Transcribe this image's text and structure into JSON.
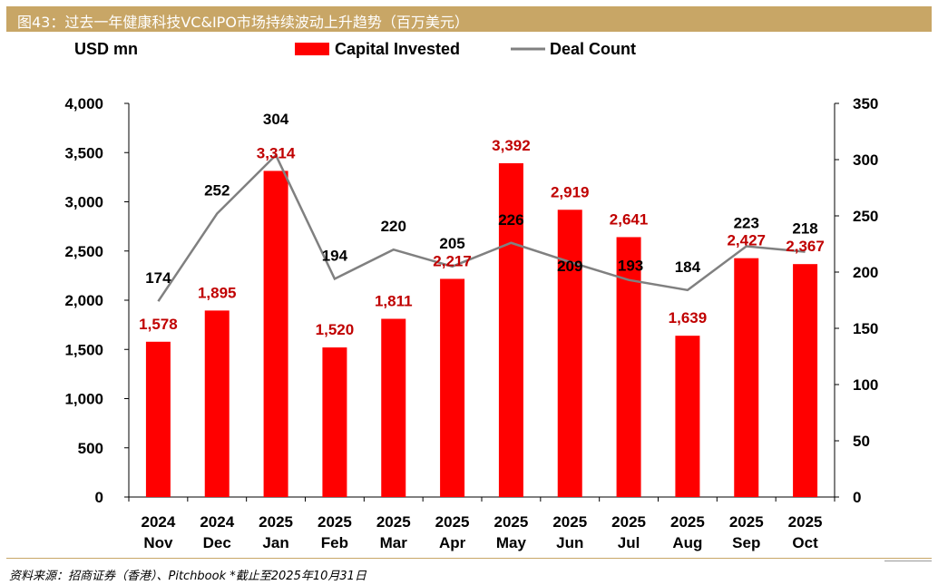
{
  "title": "图43：过去一年健康科技VC&IPO市场持续波动上升趋势（百万美元）",
  "source": "资料来源：招商证券（香港）、Pitchbook *截止至2025年10月31日",
  "colors": {
    "bar": "#ff0000",
    "line": "#808080",
    "bar_label": "#c00000",
    "header": "#c8a666"
  },
  "chart_data": {
    "type": "bar+line",
    "y_left_label": "USD mn",
    "legend": {
      "bar": "Capital Invested",
      "line": "Deal Count",
      "position": "top"
    },
    "categories": [
      [
        "2024",
        "Nov"
      ],
      [
        "2024",
        "Dec"
      ],
      [
        "2025",
        "Jan"
      ],
      [
        "2025",
        "Feb"
      ],
      [
        "2025",
        "Mar"
      ],
      [
        "2025",
        "Apr"
      ],
      [
        "2025",
        "May"
      ],
      [
        "2025",
        "Jun"
      ],
      [
        "2025",
        "Jul"
      ],
      [
        "2025",
        "Aug"
      ],
      [
        "2025",
        "Sep"
      ],
      [
        "2025",
        "Oct"
      ]
    ],
    "series": [
      {
        "name": "Capital Invested",
        "type": "bar",
        "axis": "left",
        "values": [
          1578,
          1895,
          3314,
          1520,
          1811,
          2217,
          3392,
          2919,
          2641,
          1639,
          2427,
          2367
        ],
        "labels": [
          "1,578",
          "1,895",
          "3,314",
          "1,520",
          "1,811",
          "2,217",
          "3,392",
          "2,919",
          "2,641",
          "1,639",
          "2,427",
          "2,367"
        ]
      },
      {
        "name": "Deal Count",
        "type": "line",
        "axis": "right",
        "values": [
          174,
          252,
          304,
          194,
          220,
          205,
          226,
          209,
          193,
          184,
          223,
          218
        ],
        "labels": [
          "174",
          "252",
          "304",
          "194",
          "220",
          "205",
          "226",
          "209",
          "193",
          "184",
          "223",
          "218"
        ]
      }
    ],
    "y_left": {
      "min": 0,
      "max": 4000,
      "step": 500,
      "ticks": [
        "0",
        "500",
        "1,000",
        "1,500",
        "2,000",
        "2,500",
        "3,000",
        "3,500",
        "4,000"
      ]
    },
    "y_right": {
      "min": 0,
      "max": 350,
      "step": 50,
      "ticks": [
        "0",
        "50",
        "100",
        "150",
        "200",
        "250",
        "300",
        "350"
      ]
    }
  }
}
